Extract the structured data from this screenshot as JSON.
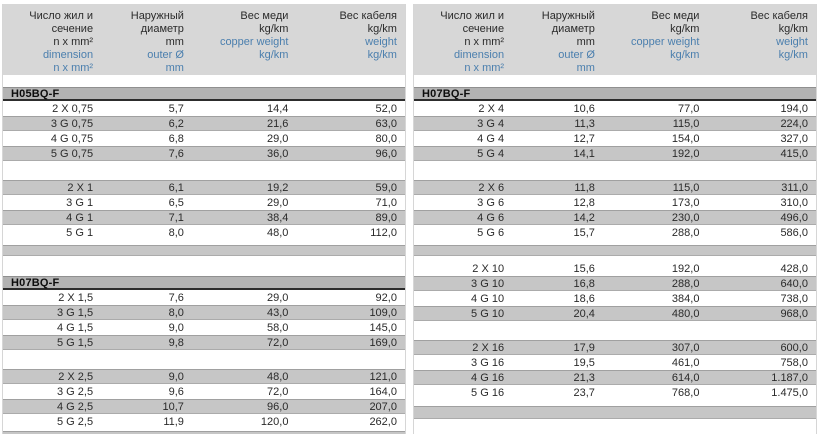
{
  "colors": {
    "header_bg": "#d7d7d7",
    "stripe": "#c6c6c6",
    "section_bg": "#b3b3b3",
    "blue": "#4b7fae",
    "text": "#2a2a2a"
  },
  "header_columns": [
    {
      "black": [
        "Число жил и",
        "сечение",
        "n x mm²"
      ],
      "blue": [
        "dimension",
        "n x mm²"
      ]
    },
    {
      "black": [
        "Наружный",
        "диаметр",
        "mm"
      ],
      "blue": [
        "outer Ø",
        "mm"
      ]
    },
    {
      "black": [
        "Вес меди",
        "kg/km"
      ],
      "blue": [
        "copper weight",
        "kg/km"
      ]
    },
    {
      "black": [
        "Вес кабеля",
        "kg/km"
      ],
      "blue": [
        "weight",
        "kg/km"
      ]
    }
  ],
  "column_names": [
    "dimension-cell",
    "outer-diameter-cell",
    "copper-weight-cell",
    "cable-weight-cell"
  ],
  "tables": [
    {
      "side": "left",
      "blocks": [
        {
          "type": "colheader"
        },
        {
          "type": "gap",
          "h": 12
        },
        {
          "type": "section",
          "label": "H05BQ-F"
        },
        {
          "type": "rows",
          "firstShade": "white",
          "rows": [
            [
              "2 X 0,75",
              "5,7",
              "14,4",
              "52,0"
            ],
            [
              "3 G 0,75",
              "6,2",
              "21,6",
              "63,0"
            ],
            [
              "4 G 0,75",
              "6,8",
              "29,0",
              "80,0"
            ],
            [
              "5 G 0,75",
              "7,6",
              "36,0",
              "96,0"
            ]
          ]
        },
        {
          "type": "gap",
          "h": 19
        },
        {
          "type": "rows",
          "firstShade": "gray",
          "rows": [
            [
              "2 X 1",
              "6,1",
              "19,2",
              "59,0"
            ],
            [
              "3 G 1",
              "6,5",
              "29,0",
              "71,0"
            ],
            [
              "4 G 1",
              "7,1",
              "38,4",
              "89,0"
            ],
            [
              "5 G 1",
              "8,0",
              "48,0",
              "112,0"
            ]
          ]
        },
        {
          "type": "gap",
          "h": 5
        },
        {
          "type": "separator",
          "h": 11
        },
        {
          "type": "gap",
          "h": 20
        },
        {
          "type": "section",
          "label": "H07BQ-F"
        },
        {
          "type": "rows",
          "firstShade": "white",
          "rows": [
            [
              "2 X 1,5",
              "7,6",
              "29,0",
              "92,0"
            ],
            [
              "3 G 1,5",
              "8,0",
              "43,0",
              "109,0"
            ],
            [
              "4 G 1,5",
              "9,0",
              "58,0",
              "145,0"
            ],
            [
              "5 G 1,5",
              "9,8",
              "72,0",
              "169,0"
            ]
          ]
        },
        {
          "type": "gap",
          "h": 19
        },
        {
          "type": "rows",
          "firstShade": "gray",
          "rows": [
            [
              "2 X 2,5",
              "9,0",
              "48,0",
              "121,0"
            ],
            [
              "3 G 2,5",
              "9,6",
              "72,0",
              "164,0"
            ],
            [
              "4 G 2,5",
              "10,7",
              "96,0",
              "207,0"
            ],
            [
              "5 G 2,5",
              "11,9",
              "120,0",
              "262,0"
            ]
          ]
        },
        {
          "type": "gap",
          "h": 2
        },
        {
          "type": "sliver",
          "h": 6
        }
      ]
    },
    {
      "side": "right",
      "blocks": [
        {
          "type": "colheader"
        },
        {
          "type": "gap",
          "h": 12
        },
        {
          "type": "section",
          "label": "H07BQ-F"
        },
        {
          "type": "rows",
          "firstShade": "white",
          "rows": [
            [
              "2 X 4",
              "10,6",
              "77,0",
              "194,0"
            ],
            [
              "3 G 4",
              "11,3",
              "115,0",
              "224,0"
            ],
            [
              "4 G 4",
              "12,7",
              "154,0",
              "327,0"
            ],
            [
              "5 G 4",
              "14,1",
              "192,0",
              "415,0"
            ]
          ]
        },
        {
          "type": "gap",
          "h": 19
        },
        {
          "type": "rows",
          "firstShade": "gray",
          "rows": [
            [
              "2 X 6",
              "11,8",
              "115,0",
              "311,0"
            ],
            [
              "3 G 6",
              "12,8",
              "173,0",
              "310,0"
            ],
            [
              "4 G 6",
              "14,2",
              "230,0",
              "496,0"
            ],
            [
              "5 G 6",
              "15,7",
              "288,0",
              "586,0"
            ]
          ]
        },
        {
          "type": "gap",
          "h": 5
        },
        {
          "type": "separator",
          "h": 11
        },
        {
          "type": "gap",
          "h": 5
        },
        {
          "type": "rows",
          "firstShade": "white",
          "rows": [
            [
              "2 X 10",
              "15,6",
              "192,0",
              "428,0"
            ],
            [
              "3 G 10",
              "16,8",
              "288,0",
              "640,0"
            ],
            [
              "4 G 10",
              "18,6",
              "384,0",
              "738,0"
            ],
            [
              "5 G 10",
              "20,4",
              "480,0",
              "968,0"
            ]
          ]
        },
        {
          "type": "gap",
          "h": 19
        },
        {
          "type": "rows",
          "firstShade": "gray",
          "rows": [
            [
              "2 X 16",
              "17,9",
              "307,0",
              "600,0"
            ],
            [
              "3 G 16",
              "19,5",
              "461,0",
              "758,0"
            ],
            [
              "4 G 16",
              "21,3",
              "614,0",
              "1.187,0"
            ],
            [
              "5 G 16",
              "23,7",
              "768,0",
              "1.475,0"
            ]
          ]
        },
        {
          "type": "gap",
          "h": 6
        },
        {
          "type": "separator",
          "h": 13
        }
      ]
    }
  ]
}
